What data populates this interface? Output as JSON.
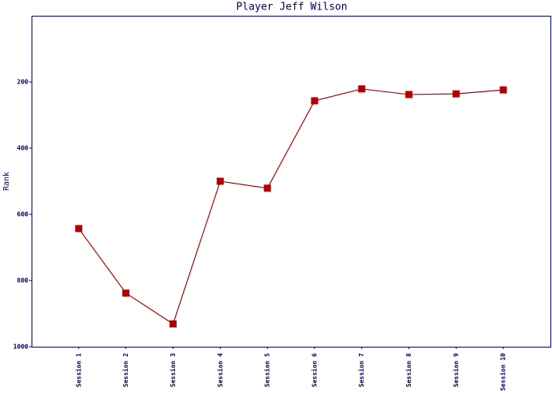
{
  "chart_data": {
    "type": "line",
    "title": "Player Jeff Wilson",
    "y_label": "Rank",
    "categories": [
      "Session 1",
      "Session 2",
      "Session 3",
      "Session 4",
      "Session 5",
      "Session 6",
      "Session 7",
      "Session 8",
      "Session 9",
      "Session 10"
    ],
    "series": [
      {
        "name": "Rank",
        "color": "#b00000",
        "values": [
          643,
          838,
          931,
          500,
          521,
          257,
          221,
          238,
          236,
          224
        ]
      }
    ],
    "ylim": [
      0,
      1000
    ],
    "y_inverted": true,
    "yticks": [
      200,
      400,
      600,
      800,
      1000
    ],
    "grid": false,
    "marker": "square"
  }
}
